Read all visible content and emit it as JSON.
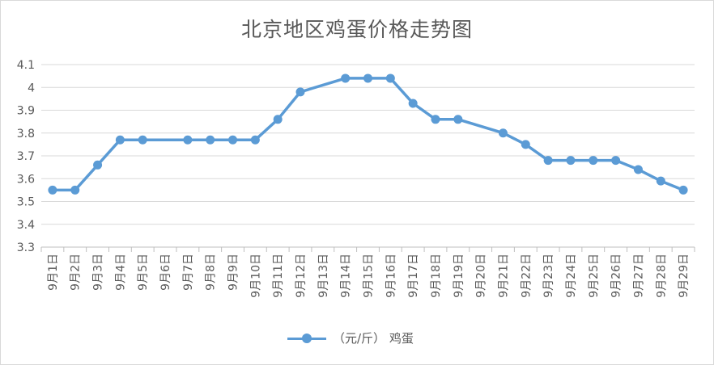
{
  "chart_data": {
    "type": "line",
    "title": "北京地区鸡蛋价格走势图",
    "xlabel": "",
    "ylabel": "",
    "categories": [
      "9月1日",
      "9月2日",
      "9月3日",
      "9月4日",
      "9月5日",
      "9月6日",
      "9月7日",
      "9月8日",
      "9月9日",
      "9月10日",
      "9月11日",
      "9月12日",
      "9月13日",
      "9月14日",
      "9月15日",
      "9月16日",
      "9月17日",
      "9月18日",
      "9月19日",
      "9月20日",
      "9月21日",
      "9月22日",
      "9月23日",
      "9月24日",
      "9月25日",
      "9月26日",
      "9月27日",
      "9月28日",
      "9月29日"
    ],
    "series": [
      {
        "name": "（元/斤） 鸡蛋",
        "color": "#5b9bd5",
        "values": [
          3.55,
          3.55,
          3.66,
          3.77,
          3.77,
          null,
          3.77,
          3.77,
          3.77,
          3.77,
          3.86,
          3.98,
          null,
          4.04,
          4.04,
          4.04,
          3.93,
          3.86,
          3.86,
          null,
          3.8,
          3.75,
          3.68,
          3.68,
          3.68,
          3.68,
          3.64,
          3.59,
          3.55
        ]
      }
    ],
    "ylim": [
      3.3,
      4.1
    ],
    "yticks": [
      "3.3",
      "3.4",
      "3.5",
      "3.6",
      "3.7",
      "3.8",
      "3.9",
      "4",
      "4.1"
    ],
    "grid": true,
    "legend_position": "bottom",
    "gaps": "connect"
  }
}
